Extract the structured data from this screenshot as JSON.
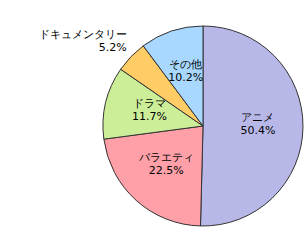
{
  "chart_data": {
    "type": "pie",
    "categories": [
      "アニメ",
      "バラエティ",
      "ドラマ",
      "ドキュメンタリー",
      "その他"
    ],
    "values": [
      50.4,
      22.5,
      11.7,
      5.2,
      10.2
    ],
    "value_labels": [
      "50.4%",
      "22.5%",
      "11.7%",
      "5.2%",
      "10.2%"
    ],
    "colors": [
      "#b8b8e8",
      "#ffa0a8",
      "#ccee99",
      "#ffcc66",
      "#a8d8ff"
    ]
  }
}
